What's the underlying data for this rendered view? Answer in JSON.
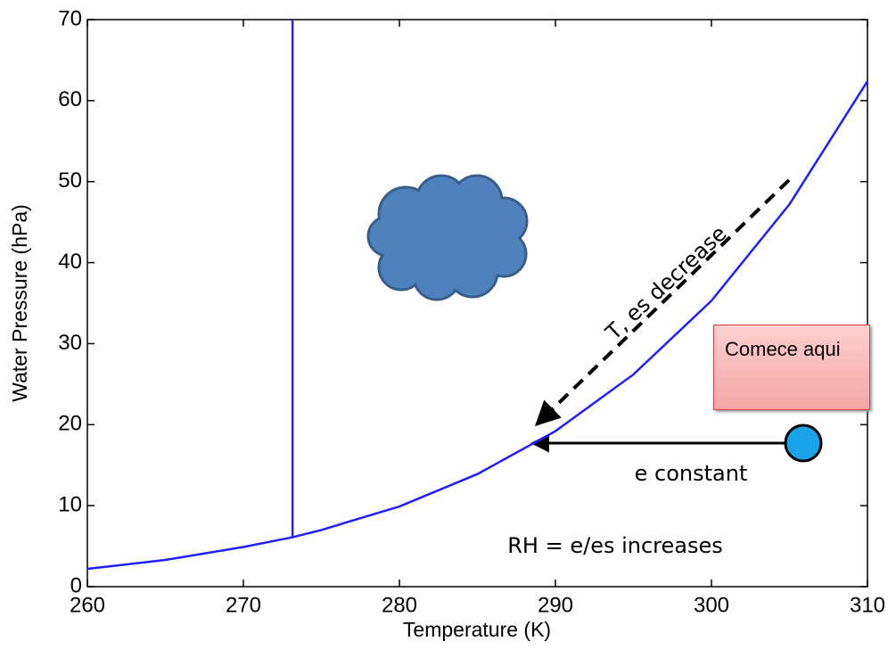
{
  "chart_data": {
    "type": "line",
    "x_label": "Temperature (K)",
    "y_label": "Water Pressure (hPa)",
    "xlim": [
      260,
      310
    ],
    "xticks": [
      260,
      270,
      280,
      290,
      300,
      310
    ],
    "ylim": [
      0,
      70
    ],
    "yticks": [
      0,
      10,
      20,
      30,
      40,
      50,
      60,
      70
    ],
    "grid": false,
    "series": [
      {
        "color": "#1f1fff",
        "x": [
          260,
          265,
          270,
          273.15,
          275,
          280,
          285,
          290,
          295,
          300,
          305,
          310
        ],
        "values": [
          2.2,
          3.3,
          4.9,
          6.1,
          7.0,
          9.9,
          13.9,
          19.2,
          26.2,
          35.3,
          47.2,
          62.4
        ]
      },
      {
        "color": "#1f1fff",
        "x": [
          273.15,
          273.15
        ],
        "values": [
          6.1,
          70
        ]
      }
    ],
    "annotations": [
      {
        "text": "T, es decrease"
      },
      {
        "text": "e constant"
      },
      {
        "text": "RH = e/es increases"
      },
      {
        "text": "Comece aqui"
      }
    ]
  }
}
